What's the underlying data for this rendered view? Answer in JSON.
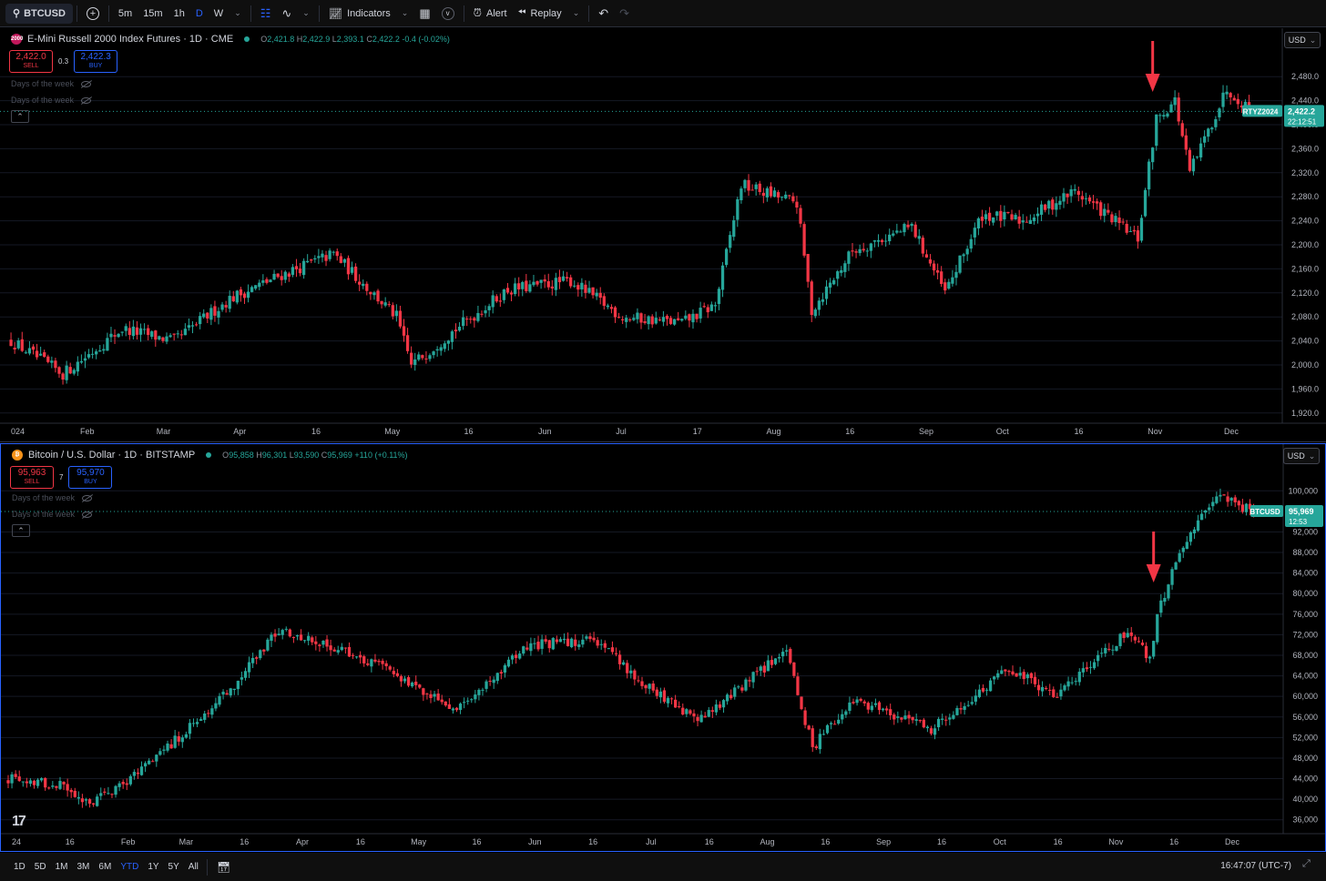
{
  "toolbar": {
    "symbol": "BTCUSD",
    "intervals": [
      "5m",
      "15m",
      "1h",
      "D",
      "W"
    ],
    "active_interval": "D",
    "indicators_label": "Indicators",
    "alert_label": "Alert",
    "replay_label": "Replay"
  },
  "colors": {
    "up": "#26a69a",
    "down": "#f23645",
    "accent": "#2962ff",
    "background": "#000000",
    "grid": "#151924"
  },
  "top_pane": {
    "title": "E-Mini Russell 2000 Index Futures · 1D · CME",
    "icon_text": "2000",
    "ohlc": {
      "O": "2,421.8",
      "H": "2,422.9",
      "L": "2,393.1",
      "C": "2,422.2",
      "change": "-0.4 (-0.02%)"
    },
    "sell_price": "2,422.0",
    "sell_label": "SELL",
    "spread": "0.3",
    "buy_price": "2,422.3",
    "buy_label": "BUY",
    "indicators": [
      "Days of the week",
      "Days of the week"
    ],
    "currency": "USD",
    "price_label_symbol": "RTYZ2024",
    "price_label_value": "2,422.2",
    "price_label_countdown": "22:12:51",
    "y_axis_ticks": [
      "2,480.0",
      "2,440.0",
      "2,400.0",
      "2,360.0",
      "2,320.0",
      "2,280.0",
      "2,240.0",
      "2,200.0",
      "2,160.0",
      "2,120.0",
      "2,080.0",
      "2,040.0",
      "2,000.0",
      "1,960.0",
      "1,920.0"
    ],
    "x_axis_ticks": [
      "024",
      "Feb",
      "Mar",
      "Apr",
      "16",
      "May",
      "16",
      "Jun",
      "Jul",
      "17",
      "Aug",
      "16",
      "Sep",
      "Oct",
      "16",
      "Nov",
      "Dec"
    ]
  },
  "bottom_pane": {
    "title": "Bitcoin / U.S. Dollar · 1D · BITSTAMP",
    "ohlc": {
      "O": "95,858",
      "H": "96,301",
      "L": "93,590",
      "C": "95,969",
      "change": "+110 (+0.11%)"
    },
    "sell_price": "95,963",
    "sell_label": "SELL",
    "spread": "7",
    "buy_price": "95,970",
    "buy_label": "BUY",
    "indicators": [
      "Days of the week",
      "Days of the week"
    ],
    "currency": "USD",
    "price_label_symbol": "BTCUSD",
    "price_label_value": "95,969",
    "price_label_countdown": "12:53",
    "y_axis_ticks": [
      "100,000",
      "92,000",
      "88,000",
      "84,000",
      "80,000",
      "76,000",
      "72,000",
      "68,000",
      "64,000",
      "60,000",
      "56,000",
      "52,000",
      "48,000",
      "44,000",
      "40,000",
      "36,000"
    ],
    "x_axis_ticks": [
      "24",
      "16",
      "Feb",
      "Mar",
      "16",
      "Apr",
      "16",
      "May",
      "16",
      "Jun",
      "16",
      "Jul",
      "16",
      "Aug",
      "16",
      "Sep",
      "16",
      "Oct",
      "16",
      "Nov",
      "16",
      "Dec"
    ]
  },
  "chart_data": [
    {
      "type": "candlestick",
      "title": "E-Mini Russell 2000 Index Futures · 1D · CME",
      "ylim": [
        1900,
        2500
      ],
      "series": [
        {
          "name": "RTYZ2024",
          "points": [
            {
              "x": "Jan 02",
              "close": 2040
            },
            {
              "x": "Jan 16",
              "close": 1985
            },
            {
              "x": "Feb 01",
              "close": 2060
            },
            {
              "x": "Feb 15",
              "close": 2040
            },
            {
              "x": "Mar 01",
              "close": 2110
            },
            {
              "x": "Mar 15",
              "close": 2150
            },
            {
              "x": "Mar 29",
              "close": 2185
            },
            {
              "x": "Apr 15",
              "close": 2080
            },
            {
              "x": "Apr 19",
              "close": 2000
            },
            {
              "x": "May 01",
              "close": 2060
            },
            {
              "x": "May 15",
              "close": 2125
            },
            {
              "x": "Jun 01",
              "close": 2140
            },
            {
              "x": "Jun 15",
              "close": 2080
            },
            {
              "x": "Jul 01",
              "close": 2070
            },
            {
              "x": "Jul 10",
              "close": 2100
            },
            {
              "x": "Jul 17",
              "close": 2300
            },
            {
              "x": "Aug 01",
              "close": 2270
            },
            {
              "x": "Aug 05",
              "close": 2090
            },
            {
              "x": "Aug 16",
              "close": 2190
            },
            {
              "x": "Sep 01",
              "close": 2230
            },
            {
              "x": "Sep 10",
              "close": 2120
            },
            {
              "x": "Sep 20",
              "close": 2250
            },
            {
              "x": "Oct 01",
              "close": 2240
            },
            {
              "x": "Oct 15",
              "close": 2290
            },
            {
              "x": "Nov 01",
              "close": 2210
            },
            {
              "x": "Nov 06",
              "close": 2410
            },
            {
              "x": "Nov 11",
              "close": 2440
            },
            {
              "x": "Nov 15",
              "close": 2320
            },
            {
              "x": "Nov 25",
              "close": 2460
            },
            {
              "x": "Dec 02",
              "close": 2422.2
            }
          ]
        }
      ]
    },
    {
      "type": "candlestick",
      "title": "Bitcoin / U.S. Dollar · 1D · BITSTAMP",
      "ylim": [
        34000,
        102000
      ],
      "series": [
        {
          "name": "BTCUSD",
          "points": [
            {
              "x": "Jan 01",
              "close": 44000
            },
            {
              "x": "Jan 16",
              "close": 42500
            },
            {
              "x": "Jan 23",
              "close": 39500
            },
            {
              "x": "Feb 01",
              "close": 43000
            },
            {
              "x": "Feb 15",
              "close": 51500
            },
            {
              "x": "Mar 01",
              "close": 61500
            },
            {
              "x": "Mar 14",
              "close": 73000
            },
            {
              "x": "Apr 01",
              "close": 69000
            },
            {
              "x": "Apr 16",
              "close": 63500
            },
            {
              "x": "May 01",
              "close": 57500
            },
            {
              "x": "May 20",
              "close": 70000
            },
            {
              "x": "Jun 07",
              "close": 71000
            },
            {
              "x": "Jun 24",
              "close": 60500
            },
            {
              "x": "Jul 05",
              "close": 55000
            },
            {
              "x": "Jul 29",
              "close": 69000
            },
            {
              "x": "Aug 05",
              "close": 50000
            },
            {
              "x": "Aug 16",
              "close": 59500
            },
            {
              "x": "Sep 06",
              "close": 53500
            },
            {
              "x": "Sep 27",
              "close": 65500
            },
            {
              "x": "Oct 10",
              "close": 60000
            },
            {
              "x": "Oct 29",
              "close": 72500
            },
            {
              "x": "Nov 04",
              "close": 67500
            },
            {
              "x": "Nov 06",
              "close": 75500
            },
            {
              "x": "Nov 12",
              "close": 88500
            },
            {
              "x": "Nov 22",
              "close": 99000
            },
            {
              "x": "Dec 02",
              "close": 95969
            }
          ]
        }
      ]
    }
  ],
  "bottom_bar": {
    "ranges": [
      "1D",
      "5D",
      "1M",
      "3M",
      "6M",
      "YTD",
      "1Y",
      "5Y",
      "All"
    ],
    "active_range": "YTD",
    "clock": "16:47:07 (UTC-7)"
  },
  "logo_text": "17"
}
